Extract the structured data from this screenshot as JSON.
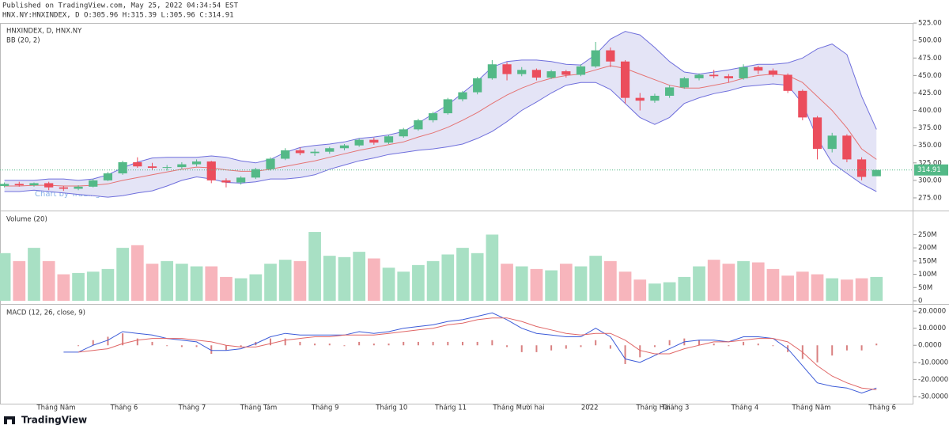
{
  "header": {
    "published": "Published on TradingView.com, May 25, 2022 04:34:54 EST",
    "symbol_line": "HNX.NY:HNXINDEX, D O:305.96 H:315.39 L:305.96 C:314.91"
  },
  "footer": {
    "logo": "TradingView",
    "watermark": "Chart by TradingView"
  },
  "chart_data": [
    {
      "type": "candlestick",
      "title": "HNXINDEX, D, HNX.NY",
      "subtitle": "BB (20, 2)",
      "up_color": "#53b987",
      "down_color": "#eb4d5c",
      "band_fill": "#e4e4f6",
      "xlim": [
        -0.3,
        61.5
      ],
      "ylim": [
        258,
        524
      ],
      "yticks": [
        {
          "value": 275,
          "label": "275.00"
        },
        {
          "value": 300,
          "label": "300.00"
        },
        {
          "value": 325,
          "label": "325.00"
        },
        {
          "value": 350,
          "label": "350.00"
        },
        {
          "value": 375,
          "label": "375.00"
        },
        {
          "value": 400,
          "label": "400.00"
        },
        {
          "value": 425,
          "label": "425.00"
        },
        {
          "value": 450,
          "label": "450.00"
        },
        {
          "value": 475,
          "label": "475.00"
        },
        {
          "value": 500,
          "label": "500.00"
        },
        {
          "value": 525,
          "label": "525.00"
        }
      ],
      "open": [
        292,
        295,
        293,
        296,
        290,
        288,
        291,
        300,
        310,
        326,
        320,
        318,
        319,
        323,
        327,
        300,
        297,
        304,
        316,
        331,
        343,
        339,
        341,
        346,
        350,
        358,
        354,
        363,
        373,
        386,
        396,
        416,
        426,
        446,
        466,
        452,
        458,
        447,
        456,
        451,
        463,
        486,
        470,
        418,
        414,
        421,
        433,
        446,
        451,
        449,
        446,
        462,
        457,
        451,
        428,
        390,
        345,
        364,
        330,
        305.96
      ],
      "high": [
        297,
        298,
        297,
        298,
        292,
        293,
        302,
        312,
        328,
        333,
        325,
        322,
        326,
        330,
        328,
        303,
        306,
        318,
        333,
        346,
        347,
        345,
        348,
        352,
        360,
        361,
        365,
        375,
        388,
        398,
        418,
        428,
        448,
        472,
        469,
        462,
        460,
        458,
        458,
        466,
        498,
        490,
        472,
        425,
        424,
        436,
        448,
        453,
        458,
        452,
        466,
        464,
        460,
        453,
        430,
        392,
        368,
        366,
        333,
        315.39
      ],
      "low": [
        290,
        291,
        291,
        286,
        285,
        286,
        290,
        299,
        308,
        318,
        315,
        314,
        316,
        320,
        296,
        290,
        294,
        302,
        314,
        329,
        336,
        335,
        338,
        343,
        348,
        351,
        352,
        361,
        371,
        383,
        394,
        413,
        423,
        444,
        443,
        449,
        443,
        445,
        447,
        449,
        461,
        462,
        410,
        400,
        411,
        418,
        431,
        443,
        446,
        440,
        444,
        452,
        448,
        425,
        386,
        330,
        340,
        326,
        300,
        305.96
      ],
      "close": [
        295,
        293,
        296,
        290,
        288,
        291,
        300,
        310,
        326,
        320,
        318,
        319,
        323,
        327,
        300,
        297,
        304,
        316,
        331,
        343,
        339,
        341,
        346,
        350,
        358,
        354,
        363,
        373,
        386,
        396,
        416,
        426,
        446,
        466,
        452,
        458,
        447,
        456,
        451,
        463,
        486,
        470,
        418,
        414,
        421,
        433,
        446,
        451,
        449,
        446,
        462,
        457,
        451,
        428,
        390,
        345,
        364,
        330,
        305,
        314.91
      ],
      "last_price_color": "#53b987",
      "series": [
        {
          "color": "#6f6fdc",
          "values": [
            300,
            300,
            300,
            302,
            302,
            300,
            302,
            308,
            318,
            326,
            332,
            333,
            333,
            333,
            335,
            333,
            328,
            325,
            330,
            340,
            347,
            350,
            352,
            355,
            360,
            362,
            365,
            370,
            382,
            395,
            408,
            425,
            442,
            462,
            470,
            472,
            472,
            470,
            466,
            465,
            480,
            502,
            513,
            508,
            490,
            470,
            455,
            452,
            455,
            458,
            462,
            466,
            466,
            468,
            475,
            488,
            495,
            480,
            420,
            373
          ]
        },
        {
          "color": "#e57373",
          "values": [
            292,
            292,
            293,
            293,
            292,
            292,
            293,
            295,
            300,
            304,
            308,
            312,
            316,
            319,
            318,
            315,
            313,
            313,
            316,
            320,
            324,
            328,
            333,
            338,
            343,
            347,
            351,
            355,
            362,
            368,
            376,
            386,
            397,
            410,
            422,
            432,
            440,
            446,
            450,
            452,
            458,
            464,
            460,
            452,
            444,
            436,
            432,
            432,
            436,
            440,
            446,
            450,
            452,
            450,
            440,
            420,
            400,
            375,
            345,
            330
          ]
        },
        {
          "color": "#6f6fdc",
          "values": [
            284,
            284,
            286,
            284,
            282,
            280,
            278,
            276,
            278,
            282,
            285,
            292,
            300,
            305,
            302,
            297,
            296,
            298,
            302,
            302,
            304,
            308,
            316,
            322,
            328,
            332,
            337,
            340,
            343,
            345,
            348,
            352,
            360,
            370,
            384,
            400,
            412,
            425,
            436,
            440,
            440,
            430,
            410,
            390,
            380,
            390,
            410,
            418,
            424,
            428,
            434,
            436,
            438,
            436,
            410,
            360,
            325,
            310,
            295,
            284
          ]
        }
      ]
    },
    {
      "type": "bar",
      "title": "Volume (20)",
      "up_color": "#a8e0c4",
      "down_color": "#f7b5bc",
      "xlim": [
        -0.3,
        61.5
      ],
      "ylim": [
        -9,
        335
      ],
      "yticks": [
        0,
        {
          "value": 50,
          "label": "50M"
        },
        {
          "value": 100,
          "label": "100M"
        },
        {
          "value": 150,
          "label": "150M"
        },
        {
          "value": 200,
          "label": "200M"
        },
        {
          "value": 250,
          "label": "250M"
        }
      ],
      "values": [
        180,
        150,
        200,
        150,
        100,
        105,
        110,
        120,
        200,
        210,
        140,
        150,
        140,
        130,
        130,
        90,
        85,
        100,
        140,
        155,
        150,
        260,
        170,
        165,
        185,
        160,
        125,
        110,
        135,
        150,
        175,
        200,
        180,
        250,
        140,
        130,
        120,
        115,
        140,
        130,
        170,
        150,
        110,
        80,
        65,
        70,
        90,
        130,
        155,
        140,
        150,
        145,
        120,
        95,
        110,
        100,
        85,
        80,
        85,
        90
      ]
    },
    {
      "type": "line",
      "title": "MACD (12, 26, close, 9)",
      "xlim": [
        -0.3,
        61.5
      ],
      "ylim": [
        -34.2,
        23.3
      ],
      "yticks": [
        {
          "value": 20,
          "label": "20.0000"
        },
        {
          "value": 10,
          "label": "10.0000"
        },
        {
          "value": 0,
          "label": "0.0000"
        },
        {
          "value": -10,
          "label": "-10.0000"
        },
        {
          "value": -20,
          "label": "-20.0000"
        },
        {
          "value": -30,
          "label": "-30.0000"
        }
      ],
      "xticks": [
        {
          "value": 3.5,
          "label": "Tháng Năm"
        },
        {
          "value": 8.1,
          "label": "Tháng 6"
        },
        {
          "value": 12.7,
          "label": "Tháng 7"
        },
        {
          "value": 17.2,
          "label": "Tháng Tám"
        },
        {
          "value": 21.7,
          "label": "Tháng 9"
        },
        {
          "value": 26.2,
          "label": "Tháng 10"
        },
        {
          "value": 30.2,
          "label": "Tháng 11"
        },
        {
          "value": 34.8,
          "label": "Tháng Mười hai"
        },
        {
          "value": 39.6,
          "label": "2022"
        },
        {
          "value": 43.9,
          "label": "Tháng Hai"
        },
        {
          "value": 45.4,
          "label": "Tháng 3"
        },
        {
          "value": 50.1,
          "label": "Tháng 4"
        },
        {
          "value": 54.6,
          "label": "Tháng Năm"
        },
        {
          "value": 59.4,
          "label": "Tháng 6"
        }
      ],
      "series": [
        {
          "color": "#3c5bd8",
          "values": [
            null,
            null,
            null,
            null,
            -4,
            -4,
            0,
            3,
            8,
            7,
            6,
            4,
            3,
            2,
            -3,
            -3,
            -2,
            1,
            5,
            7,
            6,
            6,
            6,
            6,
            8,
            7,
            8,
            10,
            11,
            12,
            14,
            15,
            17,
            19,
            15,
            10,
            7,
            6,
            5,
            5,
            10,
            5,
            -8,
            -10,
            -6,
            -2,
            2,
            3,
            3,
            2,
            5,
            5,
            4,
            -2,
            -12,
            -22,
            -24,
            -25,
            -28,
            -25
          ]
        },
        {
          "color": "#e06666",
          "values": [
            null,
            null,
            null,
            null,
            null,
            -4,
            -3,
            -2,
            1,
            3,
            4,
            4,
            4,
            3,
            2,
            0,
            -1,
            -1,
            1,
            3,
            4,
            5,
            5,
            6,
            6,
            6,
            7,
            8,
            9,
            10,
            12,
            13,
            15,
            16,
            16,
            14,
            11,
            9,
            7,
            6,
            7,
            7,
            3,
            -3,
            -5,
            -5,
            -2,
            0,
            2,
            2,
            3,
            4,
            4,
            2,
            -4,
            -12,
            -18,
            -22,
            -25,
            -26
          ]
        }
      ],
      "histogram": {
        "color": "#d98080",
        "values": [
          null,
          null,
          null,
          null,
          null,
          0,
          3,
          5,
          7,
          4,
          2,
          0,
          -1,
          -1,
          -5,
          -3,
          -1,
          2,
          4,
          4,
          2,
          1,
          1,
          0,
          2,
          1,
          1,
          2,
          2,
          2,
          2,
          2,
          2,
          3,
          -1,
          -4,
          -4,
          -3,
          -2,
          -1,
          3,
          -2,
          -11,
          -7,
          -1,
          3,
          4,
          3,
          1,
          0,
          2,
          1,
          0,
          -4,
          -8,
          -10,
          -6,
          -3,
          -3,
          1
        ]
      }
    }
  ]
}
